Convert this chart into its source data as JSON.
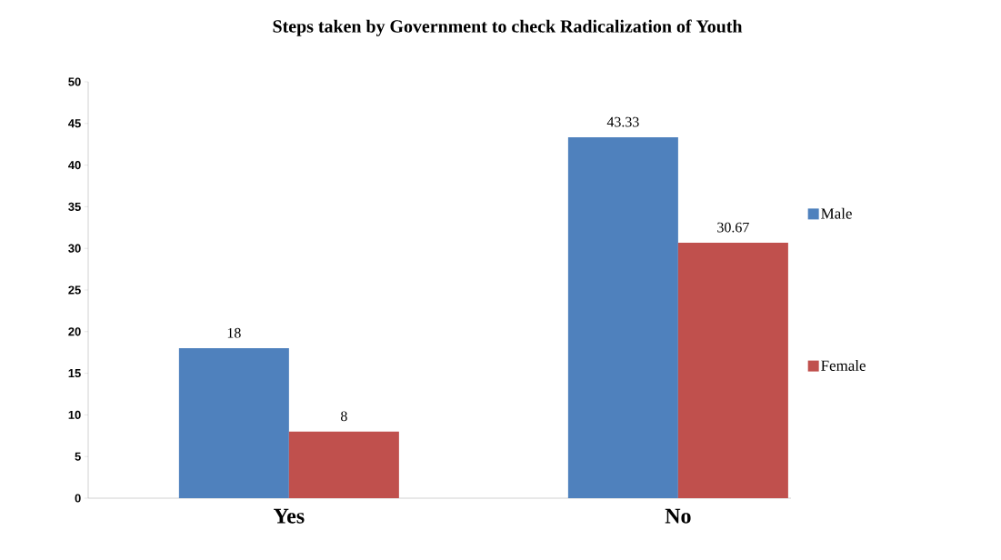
{
  "chart_data": {
    "type": "bar",
    "title": "Steps taken by Government to check Radicalization of Youth",
    "categories": [
      "Yes",
      "No"
    ],
    "series": [
      {
        "name": "Male",
        "color": "#4f81bd",
        "values": [
          18,
          43.33
        ]
      },
      {
        "name": "Female",
        "color": "#c0504d",
        "values": [
          8,
          30.67
        ]
      }
    ],
    "ylim": [
      0,
      50
    ],
    "yticks": [
      0,
      5,
      10,
      15,
      20,
      25,
      30,
      35,
      40,
      45,
      50
    ],
    "data_labels": true,
    "legend": "right",
    "grid": false
  }
}
